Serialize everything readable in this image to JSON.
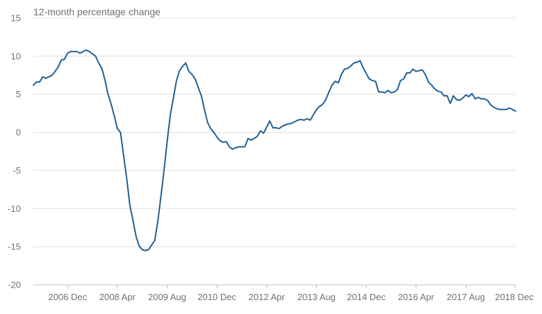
{
  "chart_data": {
    "type": "line",
    "unit_label": "12-month percentage change",
    "title": "",
    "xlabel": "",
    "ylabel": "",
    "ylim": [
      -20,
      15
    ],
    "yticks": [
      15,
      10,
      5,
      0,
      -5,
      -10,
      -15,
      -20
    ],
    "ytick_labels": [
      "15",
      "10",
      "5",
      "0",
      "-5",
      "-10",
      "-15",
      "-20"
    ],
    "xlim": [
      "2006-01",
      "2018-12"
    ],
    "xticks": [
      "2006-12",
      "2008-04",
      "2009-08",
      "2010-12",
      "2012-04",
      "2013-08",
      "2014-12",
      "2016-04",
      "2017-08",
      "2018-12"
    ],
    "xtick_labels": [
      "2006 Dec",
      "2008 Apr",
      "2009 Aug",
      "2010 Dec",
      "2012 Apr",
      "2013 Aug",
      "2014 Dec",
      "2016 Apr",
      "2017 Aug",
      "2018 Dec"
    ],
    "grid": true,
    "legend": "none",
    "line_color": "#206095",
    "series": [
      {
        "x": [
          "2006-01",
          "2006-02",
          "2006-03",
          "2006-04",
          "2006-05",
          "2006-06",
          "2006-07",
          "2006-08",
          "2006-09",
          "2006-10",
          "2006-11",
          "2006-12",
          "2007-01",
          "2007-02",
          "2007-03",
          "2007-04",
          "2007-05",
          "2007-06",
          "2007-07",
          "2007-08",
          "2007-09",
          "2007-10",
          "2007-11",
          "2007-12",
          "2008-01",
          "2008-02",
          "2008-03",
          "2008-04",
          "2008-05",
          "2008-06",
          "2008-07",
          "2008-08",
          "2008-09",
          "2008-10",
          "2008-11",
          "2008-12",
          "2009-01",
          "2009-02",
          "2009-03",
          "2009-04",
          "2009-05",
          "2009-06",
          "2009-07",
          "2009-08",
          "2009-09",
          "2009-10",
          "2009-11",
          "2009-12",
          "2010-01",
          "2010-02",
          "2010-03",
          "2010-04",
          "2010-05",
          "2010-06",
          "2010-07",
          "2010-08",
          "2010-09",
          "2010-10",
          "2010-11",
          "2010-12",
          "2011-01",
          "2011-02",
          "2011-03",
          "2011-04",
          "2011-05",
          "2011-06",
          "2011-07",
          "2011-08",
          "2011-09",
          "2011-10",
          "2011-11",
          "2011-12",
          "2012-01",
          "2012-02",
          "2012-03",
          "2012-04",
          "2012-05",
          "2012-06",
          "2012-07",
          "2012-08",
          "2012-09",
          "2012-10",
          "2012-11",
          "2012-12",
          "2013-01",
          "2013-02",
          "2013-03",
          "2013-04",
          "2013-05",
          "2013-06",
          "2013-07",
          "2013-08",
          "2013-09",
          "2013-10",
          "2013-11",
          "2013-12",
          "2014-01",
          "2014-02",
          "2014-03",
          "2014-04",
          "2014-05",
          "2014-06",
          "2014-07",
          "2014-08",
          "2014-09",
          "2014-10",
          "2014-11",
          "2014-12",
          "2015-01",
          "2015-02",
          "2015-03",
          "2015-04",
          "2015-05",
          "2015-06",
          "2015-07",
          "2015-08",
          "2015-09",
          "2015-10",
          "2015-11",
          "2015-12",
          "2016-01",
          "2016-02",
          "2016-03",
          "2016-04",
          "2016-05",
          "2016-06",
          "2016-07",
          "2016-08",
          "2016-09",
          "2016-10",
          "2016-11",
          "2016-12",
          "2017-01",
          "2017-02",
          "2017-03",
          "2017-04",
          "2017-05",
          "2017-06",
          "2017-07",
          "2017-08",
          "2017-09",
          "2017-10",
          "2017-11",
          "2017-12",
          "2018-01",
          "2018-02",
          "2018-03",
          "2018-04",
          "2018-05",
          "2018-06",
          "2018-07",
          "2018-08",
          "2018-09",
          "2018-10",
          "2018-11",
          "2018-12"
        ],
        "values": [
          6.2,
          6.6,
          6.6,
          7.3,
          7.1,
          7.3,
          7.5,
          8.0,
          8.6,
          9.5,
          9.6,
          10.4,
          10.6,
          10.6,
          10.6,
          10.4,
          10.6,
          10.8,
          10.6,
          10.3,
          10.0,
          9.1,
          8.4,
          6.9,
          5.0,
          3.7,
          2.2,
          0.5,
          0.0,
          -3.0,
          -6.0,
          -9.5,
          -11.5,
          -13.6,
          -14.9,
          -15.4,
          -15.5,
          -15.4,
          -14.8,
          -14.2,
          -11.7,
          -8.4,
          -5.0,
          -1.2,
          2.2,
          4.5,
          6.8,
          8.1,
          8.7,
          9.1,
          8.0,
          7.6,
          7.0,
          5.9,
          4.8,
          3.0,
          1.3,
          0.5,
          0.0,
          -0.6,
          -1.1,
          -1.3,
          -1.2,
          -1.9,
          -2.2,
          -2.0,
          -1.9,
          -1.9,
          -1.9,
          -0.8,
          -1.0,
          -0.8,
          -0.5,
          0.2,
          -0.1,
          0.7,
          1.5,
          0.6,
          0.6,
          0.5,
          0.8,
          1.0,
          1.1,
          1.2,
          1.4,
          1.6,
          1.7,
          1.6,
          1.8,
          1.6,
          2.3,
          3.0,
          3.4,
          3.7,
          4.3,
          5.3,
          6.2,
          6.7,
          6.5,
          7.6,
          8.3,
          8.4,
          8.7,
          9.1,
          9.2,
          9.4,
          8.5,
          7.7,
          7.0,
          6.8,
          6.7,
          5.3,
          5.3,
          5.2,
          5.5,
          5.2,
          5.3,
          5.6,
          6.8,
          7.0,
          7.8,
          7.8,
          8.3,
          8.0,
          8.1,
          8.2,
          7.6,
          6.6,
          6.2,
          5.7,
          5.4,
          5.3,
          4.8,
          4.8,
          3.8,
          4.8,
          4.3,
          4.2,
          4.5,
          4.9,
          4.7,
          5.1,
          4.4,
          4.6,
          4.4,
          4.4,
          4.2,
          3.6,
          3.3,
          3.1,
          3.0,
          3.0,
          3.0,
          3.2,
          3.0,
          2.8
        ]
      }
    ]
  }
}
